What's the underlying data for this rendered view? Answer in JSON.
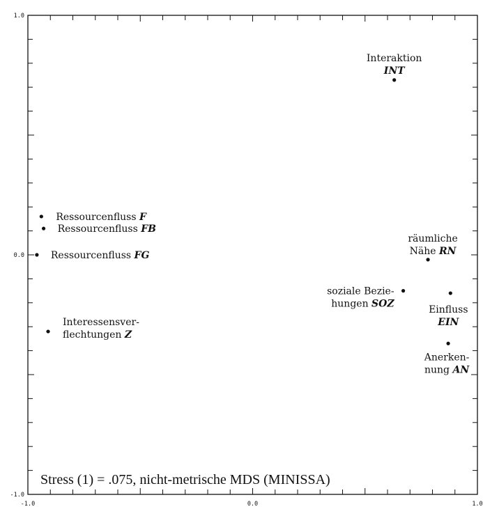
{
  "chart_data": {
    "type": "scatter",
    "xlim": [
      -1.0,
      1.0
    ],
    "ylim": [
      -1.0,
      1.0
    ],
    "x_tick_labels": [
      {
        "value": -1.0,
        "label": "-1.0"
      },
      {
        "value": 0.0,
        "label": "0.0"
      },
      {
        "value": 1.0,
        "label": "1.0"
      }
    ],
    "y_tick_labels": [
      {
        "value": 1.0,
        "label": "1.0"
      },
      {
        "value": 0.0,
        "label": "0.0"
      },
      {
        "value": -1.0,
        "label": "-1.0"
      }
    ],
    "grid": false,
    "caption": "Stress (1) = .075, nicht-metrische MDS (MINISSA)",
    "points": [
      {
        "id": "int",
        "x": 0.63,
        "y": 0.73,
        "label": [
          "Interaktion",
          ""
        ],
        "code": "INT"
      },
      {
        "id": "f",
        "x": -0.94,
        "y": 0.16,
        "label": [
          "Ressourcenfluss "
        ],
        "code": "F"
      },
      {
        "id": "fb",
        "x": -0.93,
        "y": 0.11,
        "label": [
          "Ressourcenfluss "
        ],
        "code": "FB"
      },
      {
        "id": "fg",
        "x": -0.96,
        "y": 0.0,
        "label": [
          "Ressourcenfluss "
        ],
        "code": "FG"
      },
      {
        "id": "rn",
        "x": 0.78,
        "y": -0.02,
        "label": [
          "räumliche",
          "Nähe "
        ],
        "code": "RN"
      },
      {
        "id": "soz",
        "x": 0.67,
        "y": -0.15,
        "label": [
          "soziale Bezie-",
          "hungen "
        ],
        "code": "SOZ"
      },
      {
        "id": "ein",
        "x": 0.88,
        "y": -0.16,
        "label": [
          "Einfluss",
          ""
        ],
        "code": "EIN"
      },
      {
        "id": "z",
        "x": -0.91,
        "y": -0.32,
        "label": [
          "Interessensver-",
          "flechtungen "
        ],
        "code": "Z"
      },
      {
        "id": "an",
        "x": 0.87,
        "y": -0.37,
        "label": [
          "Anerken-",
          "nung "
        ],
        "code": "AN"
      }
    ]
  }
}
